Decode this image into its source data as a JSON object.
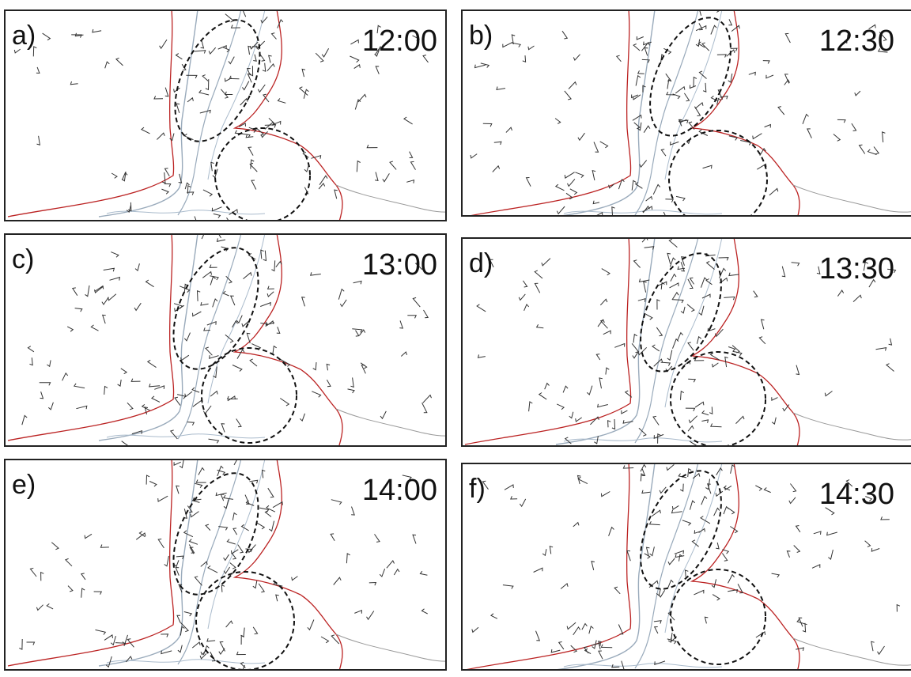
{
  "panels": [
    {
      "label": "a)",
      "time": "12:00"
    },
    {
      "label": "b)",
      "time": "12:30"
    },
    {
      "label": "c)",
      "time": "13:00"
    },
    {
      "label": "d)",
      "time": "13:30"
    },
    {
      "label": "e)",
      "time": "14:00"
    },
    {
      "label": "f)",
      "time": "14:30"
    }
  ]
}
